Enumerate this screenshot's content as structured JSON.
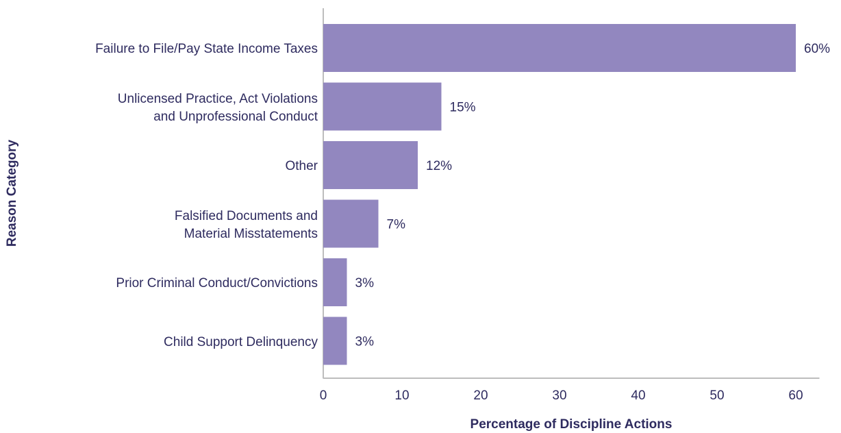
{
  "chart_data": {
    "type": "barh",
    "categories": [
      "Failure to File/Pay State Income Taxes",
      "Unlicensed Practice, Act Violations\nand Unprofessional Conduct",
      "Other",
      "Falsified Documents and\nMaterial Misstatements",
      "Prior Criminal Conduct/Convictions",
      "Child Support Delinquency"
    ],
    "values": [
      60,
      15,
      12,
      7,
      3,
      3
    ],
    "value_labels": [
      "60%",
      "15%",
      "12%",
      "7%",
      "3%",
      "3%"
    ],
    "color": "#9287bf",
    "xlabel": "Percentage of Discipline Actions",
    "ylabel": "Reason Category",
    "xlim": [
      0,
      63
    ],
    "xticks": [
      0,
      10,
      20,
      30,
      40,
      50,
      60
    ]
  }
}
